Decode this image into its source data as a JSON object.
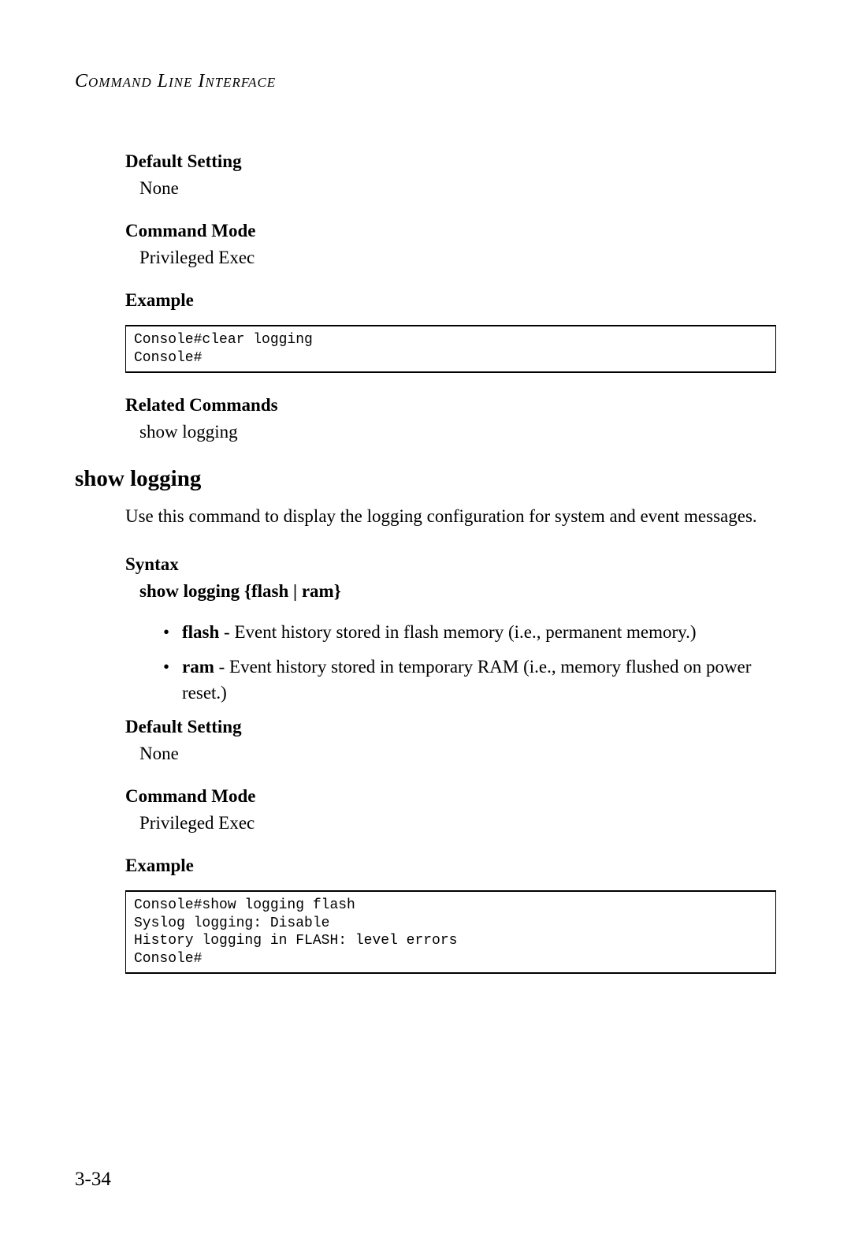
{
  "header": "Command Line Interface",
  "sections": {
    "default_setting1": {
      "label": "Default Setting",
      "value": "None"
    },
    "command_mode1": {
      "label": "Command Mode",
      "value": "Privileged Exec"
    },
    "example1": {
      "label": "Example"
    },
    "code1": "Console#clear logging\nConsole#",
    "related_commands": {
      "label": "Related Commands",
      "value": "show logging"
    },
    "title": "show logging",
    "description": "Use this command to display the logging configuration for system and event messages.",
    "syntax": {
      "label": "Syntax",
      "line": "show logging {flash | ram}"
    },
    "bullets": {
      "flash": {
        "bold": "flash",
        "text": " - Event history stored in flash memory (i.e., permanent memory.)"
      },
      "ram": {
        "bold": "ram",
        "text": " - Event history stored in temporary RAM (i.e., memory flushed on power reset.)"
      }
    },
    "default_setting2": {
      "label": "Default Setting",
      "value": "None"
    },
    "command_mode2": {
      "label": "Command Mode",
      "value": "Privileged Exec"
    },
    "example2": {
      "label": "Example"
    },
    "code2": "Console#show logging flash\nSyslog logging: Disable\nHistory logging in FLASH: level errors\nConsole#"
  },
  "page_number": "3-34"
}
